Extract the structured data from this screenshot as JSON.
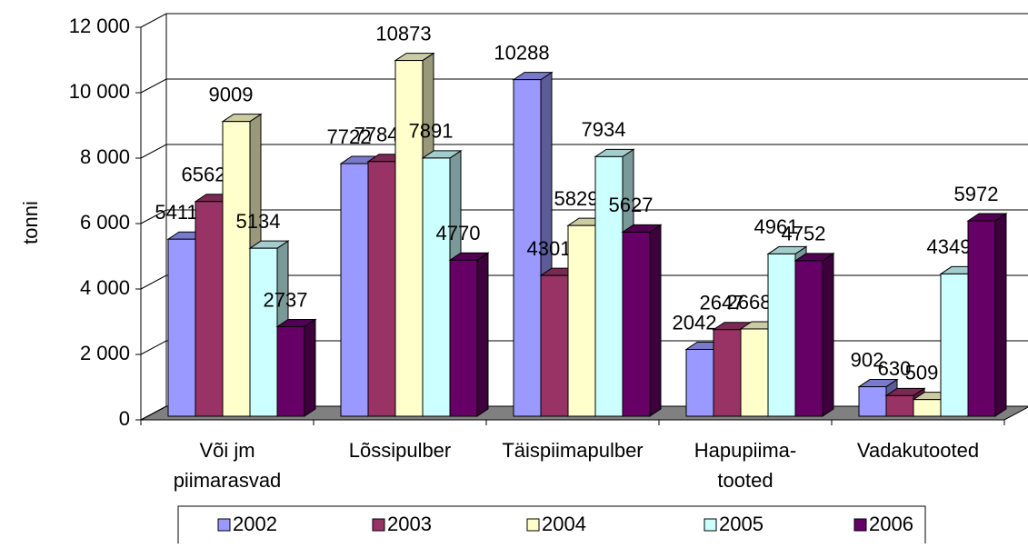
{
  "chart_data": {
    "type": "bar3d",
    "y_label": "tonni",
    "categories": [
      [
        "Või jm",
        "piimarasvad"
      ],
      [
        "Lõssipulber"
      ],
      [
        "Täispiimapulber"
      ],
      [
        "Hapupiima-",
        "tooted"
      ],
      [
        "Vadakutooted"
      ]
    ],
    "series": [
      {
        "name": "2002",
        "color": "#9999ff",
        "values": [
          5411,
          7722,
          10288,
          2042,
          902
        ]
      },
      {
        "name": "2003",
        "color": "#993366",
        "values": [
          6562,
          7784,
          4301,
          2647,
          630
        ]
      },
      {
        "name": "2004",
        "color": "#ffffcc",
        "values": [
          9009,
          10873,
          5829,
          2668,
          509
        ]
      },
      {
        "name": "2005",
        "color": "#ccffff",
        "values": [
          5134,
          7891,
          7934,
          4961,
          4349
        ]
      },
      {
        "name": "2006",
        "color": "#660066",
        "values": [
          2737,
          4770,
          5627,
          4752,
          5972
        ]
      }
    ],
    "ylim": [
      0,
      12000
    ],
    "yticks": [
      0,
      {
        "value": 2000,
        "label": "2 000"
      },
      {
        "value": 4000,
        "label": "4 000"
      },
      {
        "value": 6000,
        "label": "6 000"
      },
      {
        "value": 8000,
        "label": "8 000"
      },
      {
        "value": 10000,
        "label": "10 000"
      },
      {
        "value": 12000,
        "label": "12 000"
      }
    ],
    "grid": true,
    "legend": "bottom"
  }
}
